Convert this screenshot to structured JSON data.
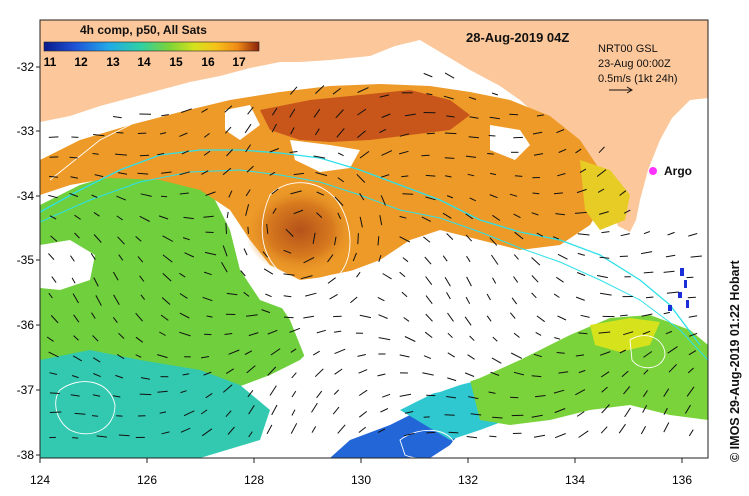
{
  "legend": {
    "title": "4h comp, p50, All Sats",
    "ticks": [
      "11",
      "12",
      "13",
      "14",
      "15",
      "16",
      "17"
    ],
    "colors": [
      "#0a1a8c",
      "#1f55d8",
      "#22a9e8",
      "#2fd0a4",
      "#7ad33a",
      "#d6e21c",
      "#f6c21a",
      "#f08a16",
      "#c94f10",
      "#8a220c"
    ]
  },
  "title": "28-Aug-2019 04Z",
  "currents_info": {
    "line1": "NRT00 GSL",
    "line2": "23-Aug 00:00Z",
    "line3": "0.5m/s (1kt 24h)"
  },
  "argo_label": "Argo",
  "lat_labels": [
    "-32",
    "-33",
    "-34",
    "-35",
    "-36",
    "-37",
    "-38"
  ],
  "lon_labels": [
    "124",
    "126",
    "128",
    "130",
    "132",
    "134",
    "136"
  ],
  "credit": "© IMOS 29-Aug-2019 01:22 Hobart",
  "colors": {
    "land": "#fcc79a",
    "cold_blue": "#2266d8",
    "cyan": "#30e0e8",
    "green": "#8ed23c",
    "orange": "#ee9a28",
    "dark_orange": "#c8561a",
    "argo": "#ff33ff"
  }
}
